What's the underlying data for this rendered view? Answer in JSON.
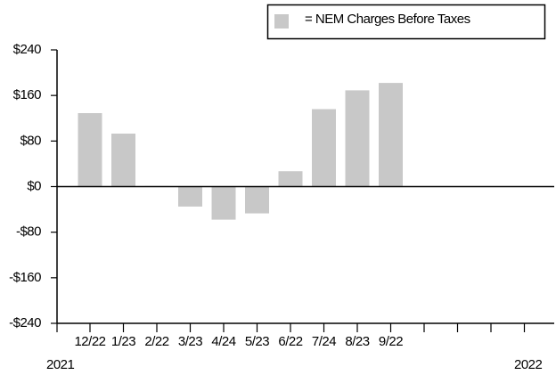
{
  "chart_data": {
    "type": "bar",
    "legend": "= NEM Charges Before Taxes",
    "categories": [
      "12/22",
      "1/23",
      "2/22",
      "3/23",
      "4/24",
      "5/23",
      "6/22",
      "7/24",
      "8/23",
      "9/22",
      null,
      null,
      null,
      null
    ],
    "values": [
      129,
      93,
      1,
      -35,
      -58,
      -47,
      27,
      136,
      169,
      182,
      null,
      null,
      null,
      null
    ],
    "color": "#c8c8c8",
    "ylim": [
      -240,
      240
    ],
    "yticks": [
      {
        "value": -240,
        "label": "-$240"
      },
      {
        "value": -160,
        "label": "-$160"
      },
      {
        "value": -80,
        "label": "-$80"
      },
      {
        "value": 0,
        "label": "$0"
      },
      {
        "value": 80,
        "label": "$80"
      },
      {
        "value": 160,
        "label": "$160"
      },
      {
        "value": 240,
        "label": "$240"
      }
    ],
    "annotations": [
      "2021",
      "2022"
    ]
  }
}
